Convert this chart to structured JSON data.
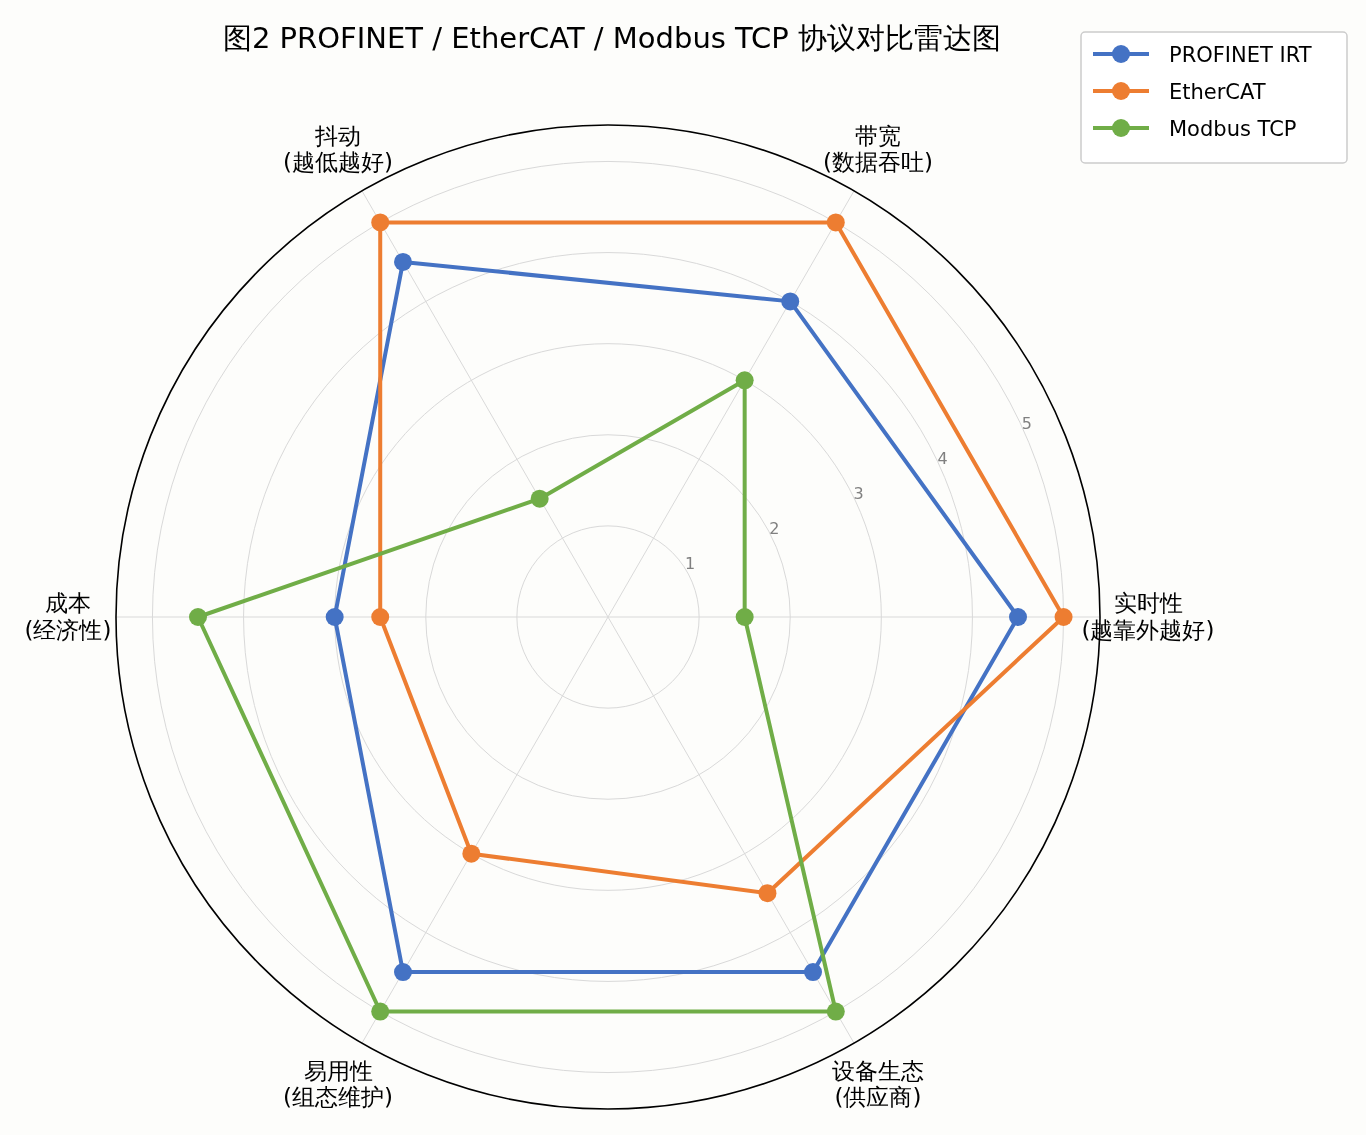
{
  "chart_data": {
    "type": "radar",
    "title": "图2  PROFINET / EtherCAT / Modbus TCP 协议对比雷达图",
    "categories": [
      "带宽\n(数据吞吐)",
      "实时性\n(越靠外越好)",
      "设备生态\n(供应商)",
      "易用性\n(组态维护)",
      "成本\n(经济性)",
      "抖动\n(越低越好)"
    ],
    "series": [
      {
        "name": "PROFINET IRT",
        "color": "#4472c4",
        "values": [
          4.0,
          4.5,
          4.5,
          4.5,
          3.0,
          4.5
        ]
      },
      {
        "name": "EtherCAT",
        "color": "#ed7d31",
        "values": [
          5.0,
          5.0,
          3.5,
          3.0,
          2.5,
          5.0
        ]
      },
      {
        "name": "Modbus TCP",
        "color": "#70ad47",
        "values": [
          3.0,
          1.5,
          5.0,
          5.0,
          4.5,
          1.5
        ]
      }
    ],
    "ylim": [
      0,
      5.4
    ],
    "yticks": [
      1,
      2,
      3,
      4,
      5
    ],
    "grid": true,
    "legend": "top right",
    "marker": "circle"
  }
}
